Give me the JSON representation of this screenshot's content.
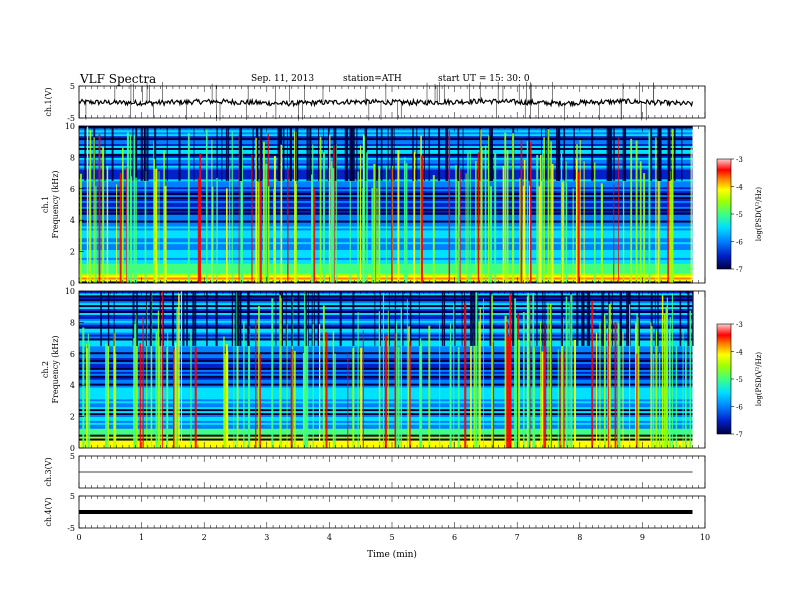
{
  "header": {
    "title": "VLF  Spectra",
    "date": "Sep. 11, 2013",
    "station": "station=ATH",
    "start": "start  UT  =   15: 30: 0"
  },
  "chart_data": [
    {
      "type": "line",
      "panel": "ch1-waveform",
      "ylabel": "ch.1(V)",
      "ylim": [
        -5,
        5
      ],
      "y_ticks": [
        "5",
        "-5"
      ],
      "x_range": [
        0,
        10
      ],
      "data_extent_min": 9.8,
      "series": [
        {
          "baseline": 0,
          "values_approx": [
            0,
            -0.3,
            0.2,
            -0.5,
            0.1,
            -0.2,
            0.3,
            -0.4,
            0.2,
            -0.6
          ]
        }
      ],
      "note_spikes": "frequent transient spikes reaching beyond +/-5"
    },
    {
      "type": "heatmap",
      "panel": "ch1-spectrogram",
      "ylabel": "ch.1\nFrequency (kHz)",
      "y_ticks": [
        "0",
        "2",
        "4",
        "6",
        "8",
        "10"
      ],
      "ylim": [
        0,
        10
      ],
      "x_range": [
        0,
        10
      ],
      "colorbar": {
        "label": "log(PSD(V²/Hz)",
        "ticks": [
          "-3",
          "-4",
          "-5",
          "-6",
          "-7"
        ],
        "range": [
          -7,
          -3
        ]
      }
    },
    {
      "type": "heatmap",
      "panel": "ch2-spectrogram",
      "ylabel": "ch.2\nFrequency (kHz)",
      "y_ticks": [
        "0",
        "2",
        "4",
        "6",
        "8",
        "10"
      ],
      "ylim": [
        0,
        10
      ],
      "x_range": [
        0,
        10
      ],
      "colorbar": {
        "label": "log(PSD(V²/Hz)",
        "ticks": [
          "-3",
          "-4",
          "-5",
          "-6",
          "-7"
        ],
        "range": [
          -7,
          -3
        ]
      }
    },
    {
      "type": "line",
      "panel": "ch3-waveform",
      "ylabel": "ch.3(V)",
      "ylim": [
        -5,
        5
      ],
      "y_ticks": [
        "5"
      ],
      "series": [
        {
          "baseline": 0,
          "values_approx": [
            0,
            0,
            0,
            0,
            0,
            0,
            0,
            0,
            0,
            0
          ]
        }
      ]
    },
    {
      "type": "line",
      "panel": "ch4-waveform",
      "ylabel": "ch.4(V)",
      "ylim": [
        -5,
        5
      ],
      "y_ticks": [
        "5",
        "-5"
      ],
      "series": [
        {
          "baseline": 0,
          "values_approx": [
            0,
            0,
            0,
            0,
            0,
            0,
            0,
            0,
            0,
            0
          ]
        }
      ]
    }
  ],
  "x_axis": {
    "label": "Time  (min)",
    "ticks": [
      "0",
      "1",
      "2",
      "3",
      "4",
      "5",
      "6",
      "7",
      "8",
      "9",
      "10"
    ],
    "range": [
      0,
      10
    ]
  },
  "colors": {
    "cmap": [
      "#000040",
      "#0020c8",
      "#0080ff",
      "#00e0ff",
      "#40ff80",
      "#a0ff00",
      "#ffff00",
      "#ff8000",
      "#ff0000",
      "#ffc0c0"
    ]
  }
}
